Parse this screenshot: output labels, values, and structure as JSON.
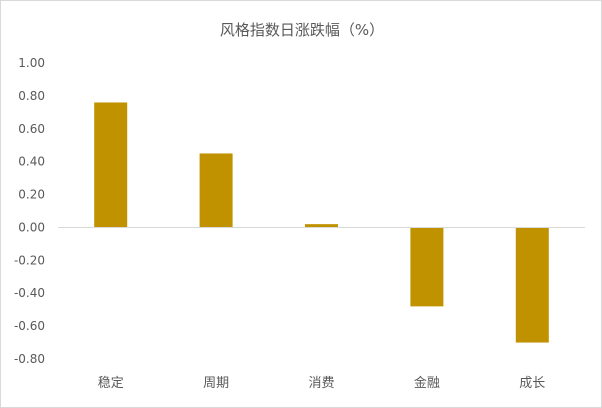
{
  "chart_data": {
    "type": "bar",
    "title": "风格指数日涨跌幅（%）",
    "categories": [
      "稳定",
      "周期",
      "消费",
      "金融",
      "成长"
    ],
    "values": [
      0.76,
      0.45,
      0.02,
      -0.48,
      -0.7
    ],
    "ylim": [
      -0.8,
      1.0
    ],
    "yticks": [
      "1.00",
      "0.80",
      "0.60",
      "0.40",
      "0.20",
      "0.00",
      "-0.20",
      "-0.40",
      "-0.60",
      "-0.80"
    ],
    "xlabel": "",
    "ylabel": "",
    "grid": false,
    "legend": "none",
    "bar_color": "#c09200",
    "axis_color": "#d9d9d9"
  }
}
